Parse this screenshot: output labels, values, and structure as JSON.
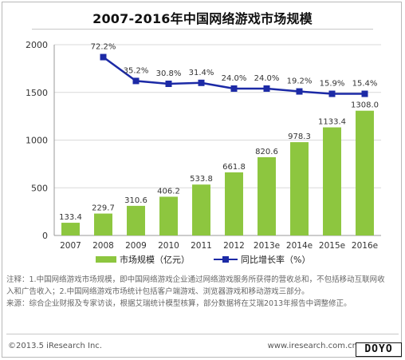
{
  "chart_data": {
    "type": "bar",
    "title": "2007-2016年中国网络游戏市场规模",
    "categories": [
      "2007",
      "2008",
      "2009",
      "2010",
      "2011",
      "2012",
      "2013e",
      "2014e",
      "2015e",
      "2016e"
    ],
    "ylim": [
      0,
      2000
    ],
    "yticks": [
      0,
      500,
      1000,
      1500,
      2000
    ],
    "grid": true,
    "legend_position": "bottom",
    "series": [
      {
        "name": "市场规模（亿元）",
        "type": "bar",
        "color": "#8dc63f",
        "values": [
          133.4,
          229.7,
          310.6,
          406.2,
          533.8,
          661.8,
          820.6,
          978.3,
          1133.4,
          1308.0
        ],
        "labels": [
          "133.4",
          "229.7",
          "310.6",
          "406.2",
          "533.8",
          "661.8",
          "820.6",
          "978.3",
          "1133.4",
          "1308.0"
        ]
      },
      {
        "name": "同比增长率（%）",
        "type": "line",
        "color": "#1c2aa6",
        "values": [
          null,
          72.2,
          35.2,
          30.8,
          31.4,
          24.0,
          24.0,
          19.2,
          15.9,
          15.4
        ],
        "labels": [
          "",
          "72.2%",
          "35.2%",
          "30.8%",
          "31.4%",
          "24.0%",
          "24.0%",
          "19.2%",
          "15.9%",
          "15.4%"
        ],
        "plot_positions": [
          null,
          1870,
          1620,
          1590,
          1600,
          1540,
          1540,
          1510,
          1485,
          1485
        ]
      }
    ]
  },
  "notes": {
    "line1": "注释：1.中国网络游戏市场规模，即中国网络游戏企业通过网络游戏服务所获得的营收总和，不包括移动互联网收入和广告收入；2.中国网络游戏市场统计包括客户端游戏、浏览器游戏和移动游戏三部分。",
    "line2": "来源：综合企业财报及专家访谈，根据艾瑞统计模型核算，部分数据将在艾瑞2013年报告中调整修正。"
  },
  "footer": {
    "left": "©2013.5 iResearch Inc.",
    "right": "www.iresearch.com.cn"
  },
  "watermark": "DOYO"
}
